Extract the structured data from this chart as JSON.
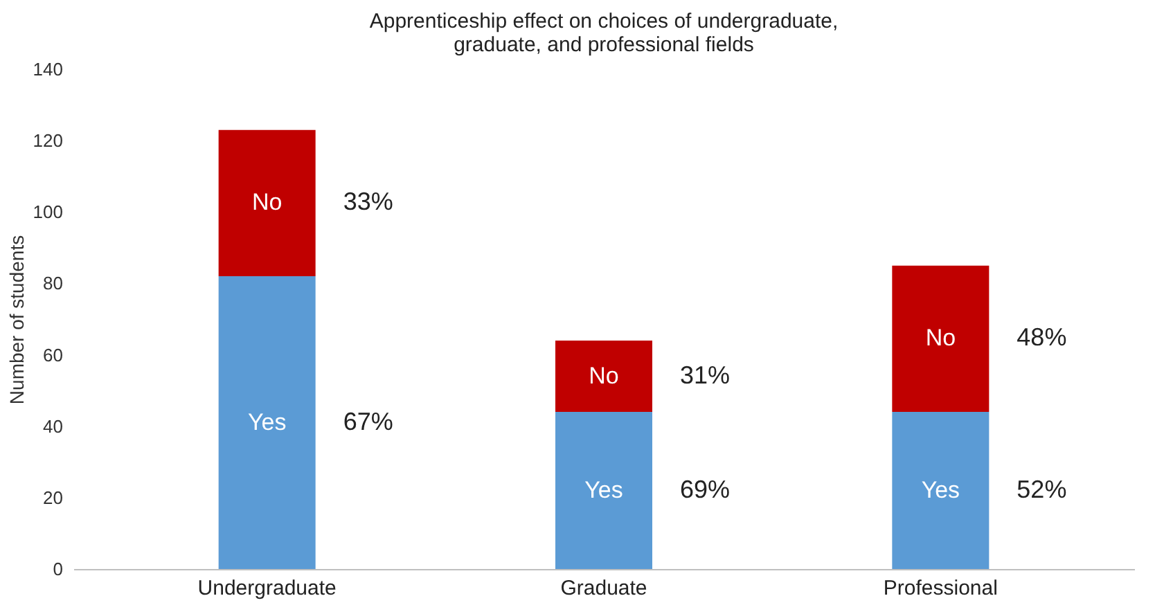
{
  "chart_data": {
    "type": "bar",
    "stacked": true,
    "title": "Apprenticeship effect on choices of undergraduate, graduate, and professional fields",
    "ylabel": "Number of students",
    "categories": [
      "Undergraduate",
      "Graduate",
      "Professional"
    ],
    "series": [
      {
        "name": "Yes",
        "color": "#5b9bd5",
        "values": [
          82,
          44,
          44
        ]
      },
      {
        "name": "No",
        "color": "#c00000",
        "values": [
          41,
          20,
          41
        ]
      }
    ],
    "ylim": [
      0,
      140
    ],
    "yticks": [
      0,
      20,
      40,
      60,
      80,
      100,
      120,
      140
    ],
    "grid": false,
    "legend": false,
    "annotations": [
      "67%",
      "33%",
      "69%",
      "31%",
      "52%",
      "48%"
    ]
  }
}
